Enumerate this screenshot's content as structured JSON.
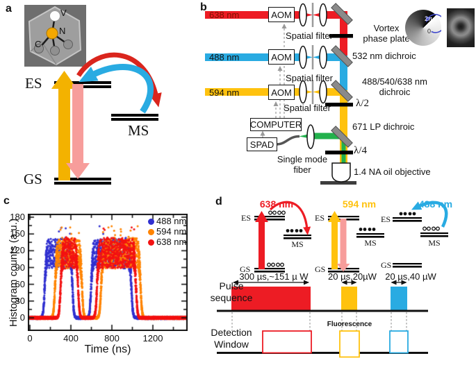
{
  "figure": {
    "panel_labels": {
      "a": "a",
      "b": "b",
      "c": "c",
      "d": "d"
    }
  },
  "panel_a": {
    "inset_labels": {
      "vacancy": "V",
      "nitrogen": "N",
      "carbon": "C"
    },
    "levels": {
      "excited": "ES",
      "metastable": "MS",
      "ground": "GS"
    },
    "colors": {
      "excitation_arrow": "#f3b200",
      "emission_arrow": "#f79d9b",
      "shelving_arrow": "#da251d",
      "repump_arrow": "#29abe2"
    }
  },
  "panel_b": {
    "beams": [
      {
        "label": "638 nm",
        "color": "#ed1c24"
      },
      {
        "label": "488 nm",
        "color": "#29abe2"
      },
      {
        "label": "594 nm",
        "color": "#ffc20e"
      }
    ],
    "aom_label": "AOM",
    "spatial_filter_label": "Spatial filter",
    "computer_label": "COMPUTER",
    "spad_label": "SPAD",
    "single_mode_fiber_label": "Single mode\nfiber",
    "vortex_label": "Vortex\nphase plate",
    "dichroic_532_label": "532 nm dichroic",
    "dichroic_488_540_638_label": "488/540/638 nm\ndichroic",
    "half_waveplate_label": "λ/2",
    "dichroic_671_label": "671 LP dichroic",
    "quarter_waveplate_label": "λ/4",
    "objective_label": "1.4 NA oil objective",
    "phase_inset": {
      "max": "2π",
      "min": "0"
    },
    "fluorescence_color": "#22b14c"
  },
  "chart_data": {
    "type": "scatter",
    "title": "",
    "xlabel": "Time (ns)",
    "ylabel": "Histogram counts (a.u.)",
    "xlim": [
      0,
      1540
    ],
    "ylim": [
      -12,
      190
    ],
    "xticks": [
      0,
      400,
      800,
      1200
    ],
    "yticks": [
      0,
      30,
      60,
      90,
      120,
      150,
      180
    ],
    "x_minor_step": 200,
    "y_minor_step": 15,
    "grid": false,
    "legend_position": "top-right",
    "plateau": 116,
    "noise": 26,
    "baseline": 0,
    "series": [
      {
        "name": "488 nm",
        "color": "#3030d0",
        "pulses_ns": [
          [
            145,
            415
          ],
          [
            598,
            990
          ]
        ]
      },
      {
        "name": "594 nm",
        "color": "#ff8400",
        "pulses_ns": [
          [
            245,
            508
          ],
          [
            695,
            1080
          ]
        ]
      },
      {
        "name": "638 nm",
        "color": "#f31212",
        "pulses_ns": [
          [
            300,
            470
          ],
          [
            655,
            1035
          ]
        ]
      }
    ]
  },
  "panel_d": {
    "diagrams": [
      {
        "title": "638 nm",
        "color": "#ed1c24",
        "es": "ES",
        "ms": "MS",
        "gs": "GS"
      },
      {
        "title": "594 nm",
        "color": "#ffc20e",
        "es": "ES",
        "ms": "MS",
        "gs": "GS"
      },
      {
        "title": "488 nm",
        "color": "#29abe2",
        "es": "ES",
        "ms": "MS",
        "gs": "GS"
      }
    ],
    "pulses": [
      {
        "annotation": "300 µs,~151 µ W"
      },
      {
        "annotation": "20 µs,20µW"
      },
      {
        "annotation": "20 µs,40 µW"
      }
    ],
    "pulse_sequence_label": "Pulse\nsequence",
    "detection_window_label": "Detection\nWindow",
    "fluorescence_label": "Fluorescence"
  }
}
